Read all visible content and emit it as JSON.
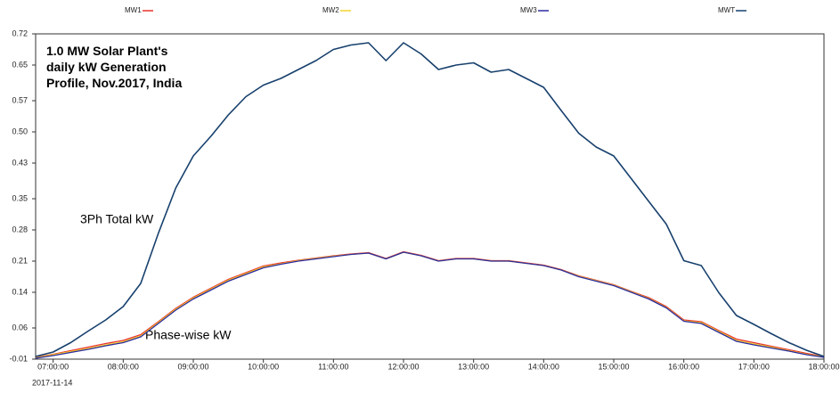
{
  "chart_data": {
    "type": "line",
    "title": [
      "1.0 MW Solar Plant's",
      "daily kW Generation",
      "Profile, Nov.2017, India"
    ],
    "annotations": [
      "3Ph Total kW",
      "Phase-wise kW"
    ],
    "date_label": "2017-11-14",
    "x": [
      "06:45:00",
      "07:00:00",
      "07:15:00",
      "07:30:00",
      "07:45:00",
      "08:00:00",
      "08:15:00",
      "08:30:00",
      "08:45:00",
      "09:00:00",
      "09:15:00",
      "09:30:00",
      "09:45:00",
      "10:00:00",
      "10:15:00",
      "10:30:00",
      "10:45:00",
      "11:00:00",
      "11:15:00",
      "11:30:00",
      "11:45:00",
      "12:00:00",
      "12:15:00",
      "12:30:00",
      "12:45:00",
      "13:00:00",
      "13:15:00",
      "13:30:00",
      "13:45:00",
      "14:00:00",
      "14:15:00",
      "14:30:00",
      "14:45:00",
      "15:00:00",
      "15:15:00",
      "15:30:00",
      "15:45:00",
      "16:00:00",
      "16:15:00",
      "16:30:00",
      "16:45:00",
      "17:00:00",
      "17:15:00",
      "17:30:00",
      "17:45:00",
      "18:00:00"
    ],
    "series": [
      {
        "name": "MW1",
        "color": "#e8322a",
        "values": [
          -0.006,
          0.001,
          0.009,
          0.017,
          0.025,
          0.032,
          0.045,
          0.074,
          0.104,
          0.129,
          0.149,
          0.169,
          0.184,
          0.199,
          0.206,
          0.212,
          0.217,
          0.222,
          0.226,
          0.229,
          0.216,
          0.231,
          0.223,
          0.211,
          0.216,
          0.216,
          0.211,
          0.211,
          0.206,
          0.201,
          0.191,
          0.177,
          0.167,
          0.157,
          0.142,
          0.128,
          0.108,
          0.078,
          0.074,
          0.054,
          0.035,
          0.027,
          0.019,
          0.011,
          0.003,
          -0.004
        ]
      },
      {
        "name": "MW2",
        "color": "#f2d22e",
        "values": [
          -0.007,
          0.0,
          0.007,
          0.014,
          0.022,
          0.029,
          0.042,
          0.072,
          0.102,
          0.127,
          0.147,
          0.167,
          0.182,
          0.197,
          0.204,
          0.211,
          0.216,
          0.221,
          0.225,
          0.228,
          0.215,
          0.23,
          0.222,
          0.21,
          0.215,
          0.215,
          0.21,
          0.21,
          0.205,
          0.2,
          0.19,
          0.176,
          0.166,
          0.156,
          0.141,
          0.126,
          0.106,
          0.076,
          0.072,
          0.052,
          0.032,
          0.024,
          0.017,
          0.009,
          0.001,
          -0.005
        ]
      },
      {
        "name": "MW3",
        "color": "#2a2aa0",
        "values": [
          -0.008,
          -0.002,
          0.005,
          0.012,
          0.02,
          0.027,
          0.04,
          0.07,
          0.1,
          0.125,
          0.145,
          0.165,
          0.18,
          0.195,
          0.203,
          0.21,
          0.215,
          0.22,
          0.225,
          0.228,
          0.215,
          0.23,
          0.222,
          0.21,
          0.215,
          0.215,
          0.21,
          0.21,
          0.205,
          0.2,
          0.19,
          0.175,
          0.165,
          0.155,
          0.14,
          0.125,
          0.105,
          0.075,
          0.07,
          0.05,
          0.03,
          0.022,
          0.015,
          0.008,
          0.0,
          -0.006
        ]
      },
      {
        "name": "MWT",
        "color": "#17406d",
        "values": [
          -0.004,
          0.006,
          0.027,
          0.053,
          0.078,
          0.108,
          0.16,
          0.272,
          0.374,
          0.446,
          0.49,
          0.538,
          0.579,
          0.605,
          0.62,
          0.64,
          0.66,
          0.685,
          0.695,
          0.7,
          0.66,
          0.7,
          0.675,
          0.64,
          0.65,
          0.655,
          0.634,
          0.64,
          0.62,
          0.6,
          0.548,
          0.497,
          0.466,
          0.446,
          0.395,
          0.344,
          0.293,
          0.211,
          0.2,
          0.139,
          0.088,
          0.068,
          0.047,
          0.027,
          0.01,
          -0.004
        ]
      }
    ],
    "xlim": [
      "06:45:00",
      "18:00:00"
    ],
    "xticks": [
      "07:00:00",
      "08:00:00",
      "09:00:00",
      "10:00:00",
      "11:00:00",
      "12:00:00",
      "13:00:00",
      "14:00:00",
      "15:00:00",
      "16:00:00",
      "17:00:00",
      "18:00:00"
    ],
    "ylim": [
      -0.01,
      0.72
    ],
    "yticks": [
      -0.01,
      0.06,
      0.14,
      0.21,
      0.28,
      0.35,
      0.43,
      {
        "value": 0.5,
        "label": "0.50"
      },
      0.57,
      0.65,
      0.72
    ],
    "grid": false
  }
}
